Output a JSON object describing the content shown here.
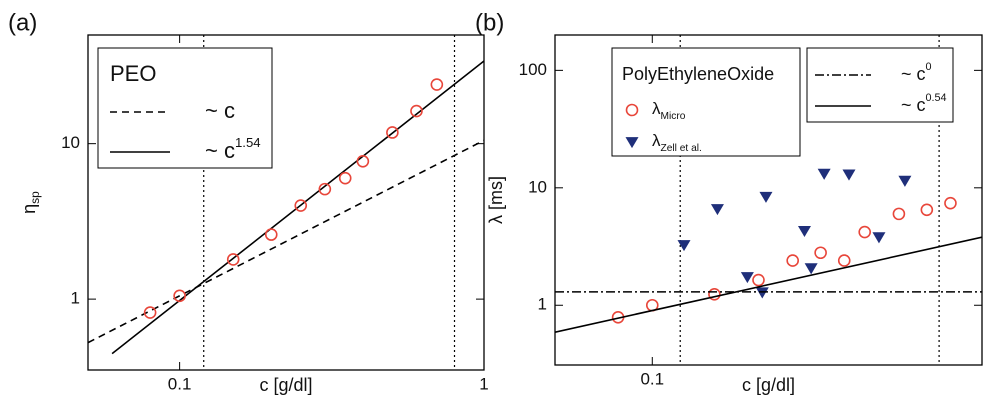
{
  "chart_data": [
    {
      "type": "scatter",
      "panel_label": "(a)",
      "xlabel": "c [g/dl]",
      "ylabel": "η",
      "ylabel_sub": "sp",
      "log_x": true,
      "log_y": true,
      "xlim": [
        0.05,
        1
      ],
      "ylim": [
        0.35,
        50
      ],
      "xticks": [
        0.1,
        1
      ],
      "yticks": [
        1,
        10
      ],
      "vlines": [
        0.12,
        0.8
      ],
      "vline_style": "dotted",
      "legend_title": "PEO",
      "series": [
        {
          "name": "~ c",
          "line": "dashed",
          "color": "#000000",
          "x": [
            0.05,
            1
          ],
          "values": [
            0.525,
            10.5
          ]
        },
        {
          "name": "~ c",
          "name_sup": "1.54",
          "line": "solid",
          "color": "#000000",
          "x": [
            0.06,
            1
          ],
          "values": [
            0.446,
            34
          ]
        },
        {
          "marker": "circle",
          "color": "#e8463a",
          "x": [
            0.08,
            0.1,
            0.15,
            0.2,
            0.25,
            0.3,
            0.35,
            0.4,
            0.5,
            0.6,
            0.7
          ],
          "values": [
            0.82,
            1.05,
            1.8,
            2.6,
            4.0,
            5.1,
            6.0,
            7.7,
            11.8,
            16.2,
            24
          ]
        }
      ]
    },
    {
      "type": "scatter",
      "panel_label": "(b)",
      "xlabel": "c [g/dl]",
      "ylabel": "λ [ms]",
      "log_x": true,
      "log_y": true,
      "xlim": [
        0.053,
        0.86
      ],
      "ylim": [
        0.31,
        200
      ],
      "xticks": [
        0.1
      ],
      "yticks": [
        1,
        10,
        100
      ],
      "vlines": [
        0.12,
        0.65
      ],
      "vline_style": "dotted",
      "legend_title": "PolyEthyleneOxide",
      "series": [
        {
          "name": "λ",
          "name_sub": "Micro",
          "marker": "circle",
          "color": "#e8463a",
          "x": [
            0.08,
            0.1,
            0.15,
            0.2,
            0.25,
            0.3,
            0.35,
            0.4,
            0.5,
            0.6,
            0.7
          ],
          "values": [
            0.79,
            1.0,
            1.24,
            1.64,
            2.4,
            2.8,
            2.4,
            4.2,
            6.0,
            6.5,
            7.4
          ]
        },
        {
          "name": "λ",
          "name_sub": "Zell et al.",
          "marker": "triangle",
          "color": "#1f2f7a",
          "x": [
            0.123,
            0.153,
            0.186,
            0.205,
            0.21,
            0.27,
            0.282,
            0.307,
            0.361,
            0.439,
            0.52
          ],
          "values": [
            3.26,
            6.6,
            1.74,
            1.29,
            8.4,
            4.3,
            2.07,
            13.2,
            13,
            3.8,
            11.5
          ]
        },
        {
          "name": "~ c",
          "name_sup": "0",
          "line": "dashdot",
          "color": "#000000",
          "x": [
            0.053,
            0.86
          ],
          "values": [
            1.3,
            1.3
          ]
        },
        {
          "name": "~ c",
          "name_sup": "0.54",
          "line": "solid",
          "color": "#000000",
          "x": [
            0.053,
            0.86
          ],
          "values": [
            0.59,
            3.8
          ]
        }
      ]
    }
  ]
}
